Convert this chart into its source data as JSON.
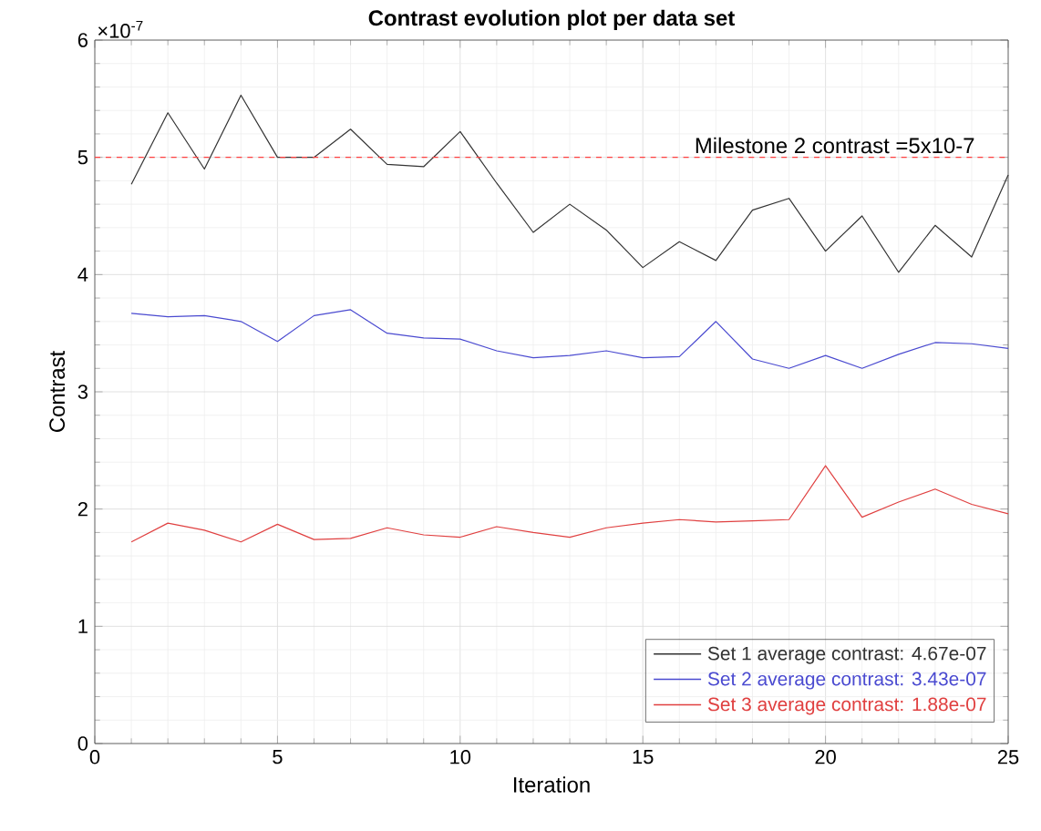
{
  "chart_data": {
    "type": "line",
    "title": "Contrast evolution plot per data set",
    "xlabel": "Iteration",
    "ylabel": "Contrast",
    "x": [
      1,
      2,
      3,
      4,
      5,
      6,
      7,
      8,
      9,
      10,
      11,
      12,
      13,
      14,
      15,
      16,
      17,
      18,
      19,
      20,
      21,
      22,
      23,
      24,
      25
    ],
    "series": [
      {
        "name": "Set 1 average contrast: 4.67e-07",
        "color": "#333333",
        "values": [
          4.77,
          5.38,
          4.9,
          5.53,
          5.0,
          5.0,
          5.24,
          4.94,
          4.92,
          5.22,
          4.78,
          4.36,
          4.6,
          4.38,
          4.06,
          4.28,
          4.12,
          4.55,
          4.65,
          4.2,
          4.5,
          4.02,
          4.42,
          4.15,
          4.85
        ]
      },
      {
        "name": "Set 2 average contrast: 3.43e-07",
        "color": "#4a4ad0",
        "values": [
          3.67,
          3.64,
          3.65,
          3.6,
          3.43,
          3.65,
          3.7,
          3.5,
          3.46,
          3.45,
          3.35,
          3.29,
          3.31,
          3.35,
          3.29,
          3.3,
          3.6,
          3.28,
          3.2,
          3.31,
          3.2,
          3.32,
          3.42,
          3.41,
          3.37
        ]
      },
      {
        "name": "Set 3 average contrast: 1.88e-07",
        "color": "#e04040",
        "values": [
          1.72,
          1.88,
          1.82,
          1.72,
          1.87,
          1.74,
          1.75,
          1.84,
          1.78,
          1.76,
          1.85,
          1.8,
          1.76,
          1.84,
          1.88,
          1.91,
          1.89,
          1.9,
          1.91,
          2.37,
          1.93,
          2.06,
          2.17,
          2.04,
          1.96
        ]
      }
    ],
    "xlim": [
      0,
      25
    ],
    "xticks": [
      0,
      5,
      10,
      15,
      20,
      25
    ],
    "ylim": [
      0,
      6
    ],
    "yticks": [
      0,
      1,
      2,
      3,
      4,
      5,
      6
    ],
    "annotations": [
      "×10$^{-7}$"
    ],
    "ref_lines": [
      {
        "axis": "y",
        "value": 5,
        "label": "Milestone 2 contrast =5x10-7",
        "color": "#ff4040",
        "line_style": "dashed"
      }
    ],
    "grid": true,
    "legend": "bottom right",
    "line_style": "solid"
  }
}
